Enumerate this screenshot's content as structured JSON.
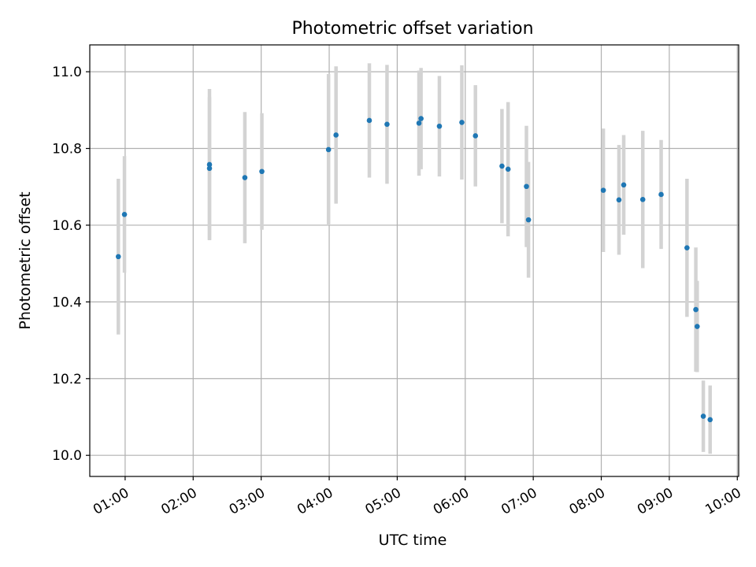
{
  "chart_data": {
    "type": "scatter",
    "title": "Photometric offset variation",
    "xlabel": "UTC time",
    "ylabel": "Photometric offset",
    "x_unit": "hours UTC",
    "xlim": [
      0.48,
      10.02
    ],
    "ylim": [
      9.945,
      11.07
    ],
    "x_ticks": [
      {
        "value": 1,
        "label": "01:00"
      },
      {
        "value": 2,
        "label": "02:00"
      },
      {
        "value": 3,
        "label": "03:00"
      },
      {
        "value": 4,
        "label": "04:00"
      },
      {
        "value": 5,
        "label": "05:00"
      },
      {
        "value": 6,
        "label": "06:00"
      },
      {
        "value": 7,
        "label": "07:00"
      },
      {
        "value": 8,
        "label": "08:00"
      },
      {
        "value": 9,
        "label": "09:00"
      },
      {
        "value": 10,
        "label": "10:00"
      }
    ],
    "y_ticks": [
      {
        "value": 10.0,
        "label": "10.0"
      },
      {
        "value": 10.2,
        "label": "10.2"
      },
      {
        "value": 10.4,
        "label": "10.4"
      },
      {
        "value": 10.6,
        "label": "10.6"
      },
      {
        "value": 10.8,
        "label": "10.8"
      },
      {
        "value": 11.0,
        "label": "11.0"
      }
    ],
    "grid": true,
    "marker_color": "#1f77b4",
    "errorbar_color": "#d3d3d3",
    "points": [
      {
        "x": 0.9,
        "y": 10.518,
        "err": 0.203
      },
      {
        "x": 0.99,
        "y": 10.628,
        "err": 0.152
      },
      {
        "x": 2.24,
        "y": 10.758,
        "err": 0.197
      },
      {
        "x": 2.24,
        "y": 10.748,
        "err": 0.186
      },
      {
        "x": 2.76,
        "y": 10.724,
        "err": 0.171
      },
      {
        "x": 3.01,
        "y": 10.74,
        "err": 0.152
      },
      {
        "x": 3.99,
        "y": 10.797,
        "err": 0.197
      },
      {
        "x": 4.1,
        "y": 10.835,
        "err": 0.179
      },
      {
        "x": 4.59,
        "y": 10.873,
        "err": 0.149
      },
      {
        "x": 4.85,
        "y": 10.863,
        "err": 0.155
      },
      {
        "x": 5.32,
        "y": 10.866,
        "err": 0.137
      },
      {
        "x": 5.35,
        "y": 10.878,
        "err": 0.132
      },
      {
        "x": 5.62,
        "y": 10.858,
        "err": 0.131
      },
      {
        "x": 5.95,
        "y": 10.868,
        "err": 0.149
      },
      {
        "x": 6.15,
        "y": 10.833,
        "err": 0.132
      },
      {
        "x": 6.54,
        "y": 10.754,
        "err": 0.149
      },
      {
        "x": 6.63,
        "y": 10.746,
        "err": 0.175
      },
      {
        "x": 6.9,
        "y": 10.701,
        "err": 0.158
      },
      {
        "x": 6.93,
        "y": 10.614,
        "err": 0.151
      },
      {
        "x": 8.03,
        "y": 10.691,
        "err": 0.161
      },
      {
        "x": 8.26,
        "y": 10.666,
        "err": 0.143
      },
      {
        "x": 8.33,
        "y": 10.705,
        "err": 0.13
      },
      {
        "x": 8.61,
        "y": 10.667,
        "err": 0.179
      },
      {
        "x": 8.88,
        "y": 10.68,
        "err": 0.142
      },
      {
        "x": 9.26,
        "y": 10.541,
        "err": 0.18
      },
      {
        "x": 9.39,
        "y": 10.38,
        "err": 0.162
      },
      {
        "x": 9.41,
        "y": 10.336,
        "err": 0.119
      },
      {
        "x": 9.5,
        "y": 10.102,
        "err": 0.093
      },
      {
        "x": 9.6,
        "y": 10.093,
        "err": 0.089
      }
    ]
  }
}
